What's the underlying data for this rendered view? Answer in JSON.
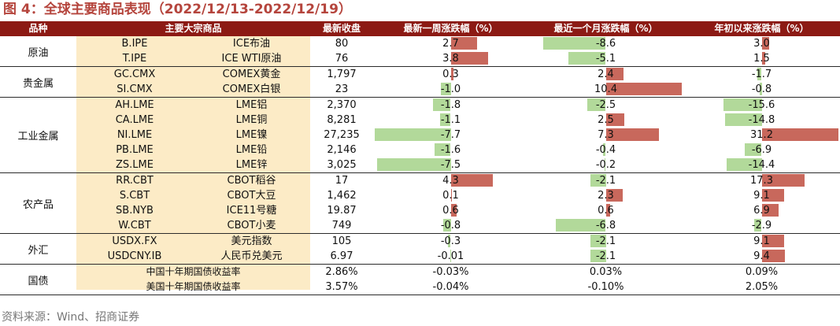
{
  "title": "图 4：全球主要商品表现（2022/12/13-2022/12/19）",
  "headers": [
    "品种",
    "主要大宗商品",
    "最新收盘",
    "最新一周涨跌幅（%）",
    "最近一个月涨跌幅（%）",
    "年初以来涨跌幅（%）"
  ],
  "groups": [
    {
      "name": "原油",
      "rows": [
        {
          "code": "B.IPE",
          "name": "ICE布油",
          "close": "80",
          "week": "2.7",
          "month": "-8.6",
          "ytd": "3.0"
        },
        {
          "code": "T.IPE",
          "name": "ICE WTI原油",
          "close": "76",
          "week": "3.8",
          "month": "-5.1",
          "ytd": "1.5"
        }
      ]
    },
    {
      "name": "贵金属",
      "rows": [
        {
          "code": "GC.CMX",
          "name": "COMEX黄金",
          "close": "1,797",
          "week": "0.3",
          "month": "2.4",
          "ytd": "-1.7"
        },
        {
          "code": "SI.CMX",
          "name": "COMEX白银",
          "close": "23",
          "week": "-1.0",
          "month": "10.4",
          "ytd": "-0.8"
        }
      ]
    },
    {
      "name": "工业金属",
      "rows": [
        {
          "code": "AH.LME",
          "name": "LME铝",
          "close": "2,370",
          "week": "-1.8",
          "month": "-2.5",
          "ytd": "-15.6"
        },
        {
          "code": "CA.LME",
          "name": "LME铜",
          "close": "8,281",
          "week": "-1.1",
          "month": "2.5",
          "ytd": "-14.8"
        },
        {
          "code": "NI.LME",
          "name": "LME镍",
          "close": "27,235",
          "week": "-7.7",
          "month": "7.3",
          "ytd": "31.2"
        },
        {
          "code": "PB.LME",
          "name": "LME铅",
          "close": "2,146",
          "week": "-1.6",
          "month": "-0.4",
          "ytd": "-6.9"
        },
        {
          "code": "ZS.LME",
          "name": "LME锌",
          "close": "3,025",
          "week": "-7.5",
          "month": "-0.2",
          "ytd": "-14.4"
        }
      ]
    },
    {
      "name": "农产品",
      "rows": [
        {
          "code": "RR.CBT",
          "name": "CBOT稻谷",
          "close": "17",
          "week": "4.3",
          "month": "-2.1",
          "ytd": "17.3"
        },
        {
          "code": "S.CBT",
          "name": "CBOT大豆",
          "close": "1,462",
          "week": "0.1",
          "month": "2.3",
          "ytd": "9.1"
        },
        {
          "code": "SB.NYB",
          "name": "ICE11号糖",
          "close": "19.87",
          "week": "0.6",
          "month": "0.6",
          "ytd": "6.9"
        },
        {
          "code": "W.CBT",
          "name": "CBOT小麦",
          "close": "749",
          "week": "-0.8",
          "month": "-6.8",
          "ytd": "-2.9"
        }
      ]
    },
    {
      "name": "外汇",
      "rows": [
        {
          "code": "USDX.FX",
          "name": "美元指数",
          "close": "105",
          "week": "-0.3",
          "month": "-2.1",
          "ytd": "9.1"
        },
        {
          "code": "USDCNY.IB",
          "name": "人民币兑美元",
          "close": "6.97",
          "week": "-0.01",
          "month": "-2.1",
          "ytd": "9.4"
        }
      ]
    },
    {
      "name": "国债",
      "rows": [
        {
          "code": "",
          "name": "中国十年期国债收益率",
          "close": "2.86%",
          "week": "-0.03%",
          "month": "0.03%",
          "ytd": "0.09%"
        },
        {
          "code": "",
          "name": "美国十年期国债收益率",
          "close": "3.57%",
          "week": "-0.04%",
          "month": "-0.10%",
          "ytd": "2.05%"
        }
      ]
    }
  ],
  "bar_scale": {
    "week_max_abs": 7.7,
    "month_max_abs": 10.4,
    "ytd_max_abs": 31.2
  },
  "colors": {
    "header": "#8c1a14",
    "positive_bar": "#c8685c",
    "negative_bar": "#b2d99a",
    "highlight": "#fcebc6",
    "title": "#b5453d"
  },
  "source": "资料来源：Wind、招商证券"
}
